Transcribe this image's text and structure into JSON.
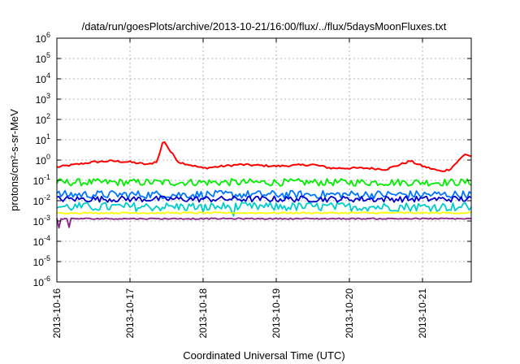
{
  "chart_data": {
    "type": "line",
    "title": "/data/run/goesPlots/archive/2013-10-21/16:00/flux/../flux/5daysMoonFluxes.txt",
    "xlabel": "Coordinated Universal Time (UTC)",
    "ylabel": "protons/cm²-s-sr-MeV",
    "yscale": "log",
    "ylim": [
      1e-06,
      1000000.0
    ],
    "xlim": [
      "2013-10-16T00:00",
      "2013-10-21T16:00"
    ],
    "x_tick_labels": [
      "2013-10-16",
      "2013-10-17",
      "2013-10-18",
      "2013-10-19",
      "2013-10-20",
      "2013-10-21"
    ],
    "y_ticks": [
      {
        "base": "10",
        "exp": "-6"
      },
      {
        "base": "10",
        "exp": "-5"
      },
      {
        "base": "10",
        "exp": "-4"
      },
      {
        "base": "10",
        "exp": "-3"
      },
      {
        "base": "10",
        "exp": "-2"
      },
      {
        "base": "10",
        "exp": "-1"
      },
      {
        "base": "10",
        "exp": "0"
      },
      {
        "base": "10",
        "exp": "1"
      },
      {
        "base": "10",
        "exp": "2"
      },
      {
        "base": "10",
        "exp": "3"
      },
      {
        "base": "10",
        "exp": "4"
      },
      {
        "base": "10",
        "exp": "5"
      },
      {
        "base": "10",
        "exp": "6"
      }
    ],
    "grid": true,
    "series": [
      {
        "color": "#ff0000",
        "level": [
          [
            "2013-10-16T00:00",
            0.45
          ],
          [
            "2013-10-16T06:00",
            0.6
          ],
          [
            "2013-10-16T12:00",
            0.8
          ],
          [
            "2013-10-16T18:00",
            0.9
          ],
          [
            "2013-10-17T00:00",
            0.8
          ],
          [
            "2013-10-17T06:00",
            0.6
          ],
          [
            "2013-10-17T09:00",
            0.9
          ],
          [
            "2013-10-17T11:00",
            10.0
          ],
          [
            "2013-10-17T13:00",
            3.0
          ],
          [
            "2013-10-17T16:00",
            0.8
          ],
          [
            "2013-10-18T00:00",
            0.4
          ],
          [
            "2013-10-18T12:00",
            0.6
          ],
          [
            "2013-10-19T00:00",
            0.5
          ],
          [
            "2013-10-19T12:00",
            0.6
          ],
          [
            "2013-10-19T18:00",
            0.4
          ],
          [
            "2013-10-20T06:00",
            0.4
          ],
          [
            "2013-10-20T12:00",
            0.35
          ],
          [
            "2013-10-20T20:00",
            0.9
          ],
          [
            "2013-10-21T00:00",
            0.5
          ],
          [
            "2013-10-21T06:00",
            0.28
          ],
          [
            "2013-10-21T09:00",
            0.35
          ],
          [
            "2013-10-21T14:00",
            2.0
          ],
          [
            "2013-10-21T16:00",
            1.5
          ]
        ]
      },
      {
        "color": "#00ee00",
        "level": [
          [
            "2013-10-16T00:00",
            0.08
          ],
          [
            "2013-10-21T16:00",
            0.08
          ]
        ]
      },
      {
        "color": "#00cccc",
        "level": [
          [
            "2013-10-16T00:00",
            0.005
          ],
          [
            "2013-10-21T16:00",
            0.005
          ]
        ]
      },
      {
        "color": "#0077ff",
        "level": [
          [
            "2013-10-16T00:00",
            0.02
          ],
          [
            "2013-10-21T16:00",
            0.02
          ]
        ]
      },
      {
        "color": "#0000cc",
        "level": [
          [
            "2013-10-16T00:00",
            0.012
          ],
          [
            "2013-10-21T16:00",
            0.012
          ]
        ]
      },
      {
        "color": "#ffff00",
        "level": [
          [
            "2013-10-16T00:00",
            0.0025
          ],
          [
            "2013-10-21T16:00",
            0.0025
          ]
        ]
      },
      {
        "color": "#882288",
        "level": [
          [
            "2013-10-16T00:00",
            0.0013
          ],
          [
            "2013-10-21T16:00",
            0.0013
          ]
        ]
      }
    ]
  }
}
